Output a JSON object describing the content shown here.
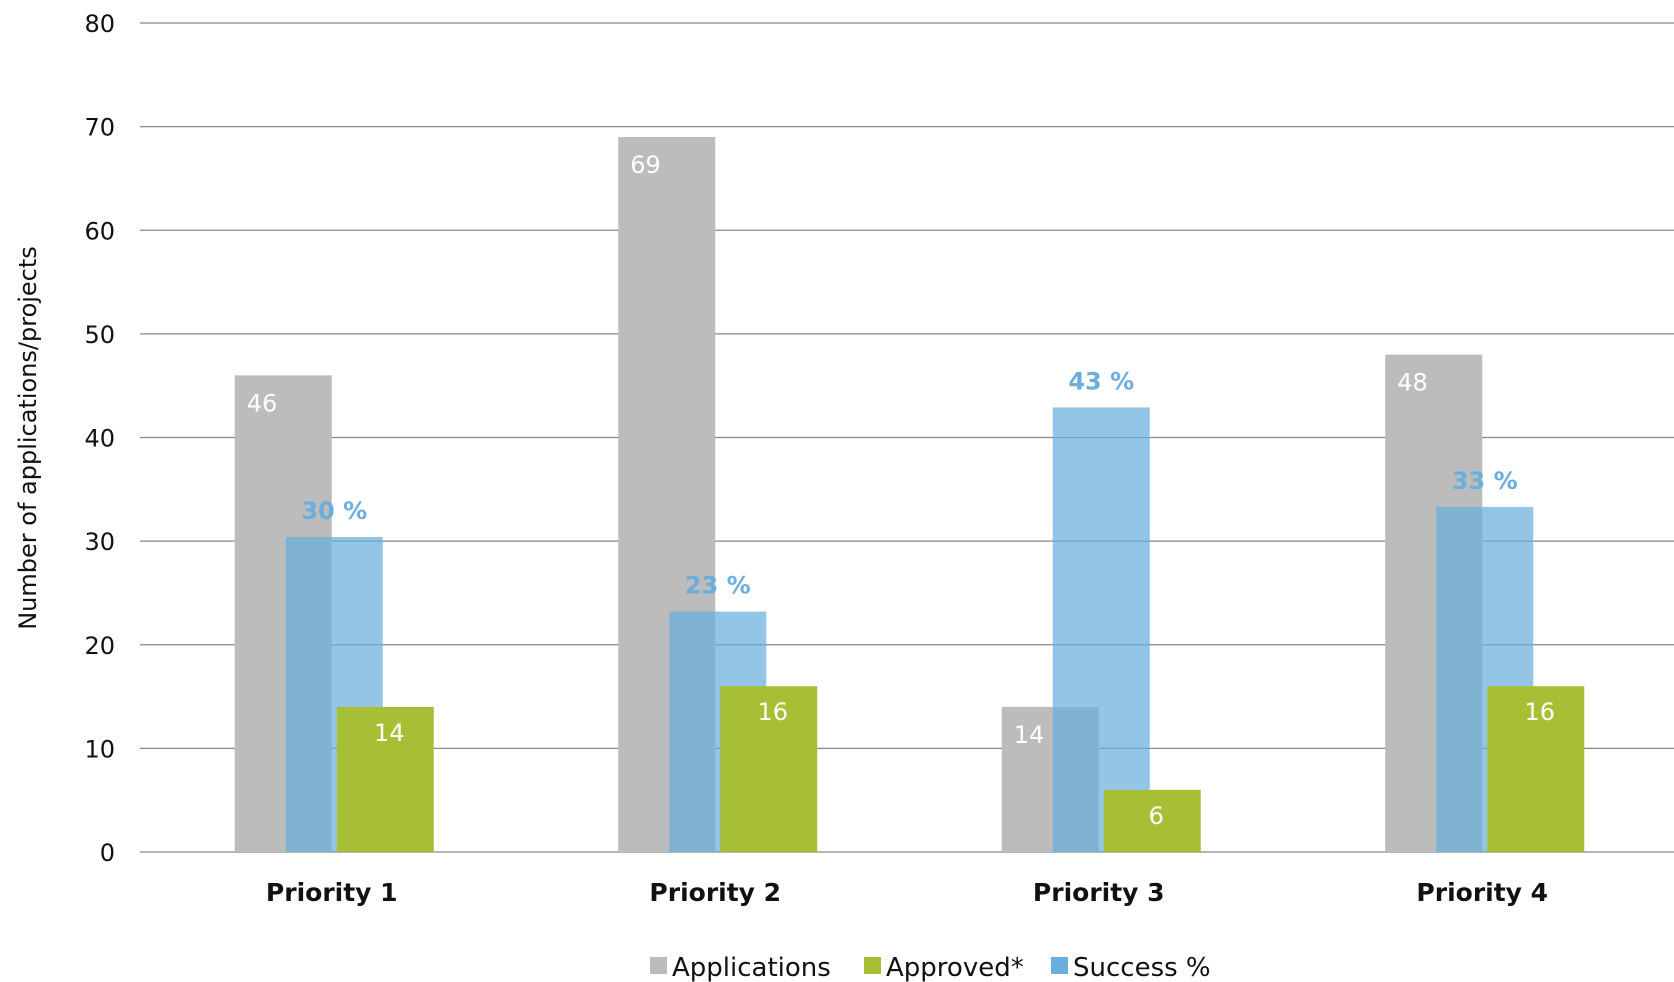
{
  "chart_data": {
    "type": "bar",
    "ylabel": "Number of applications/projects",
    "ylim": [
      0,
      80
    ],
    "yticks": [
      "0",
      "10",
      "20",
      "30",
      "40",
      "50",
      "60",
      "70",
      "80"
    ],
    "grid": true,
    "legend_position": "bottom",
    "categories": [
      "Priority 1",
      "Priority 2",
      "Priority 3",
      "Priority 4"
    ],
    "series": [
      {
        "name": "Applications",
        "color": "#bcbcbc",
        "values": [
          46,
          69,
          14,
          48
        ],
        "labels": [
          "46",
          "69",
          "14",
          "48"
        ]
      },
      {
        "name": "Approved*",
        "color": "#a6bf35",
        "values": [
          14,
          16,
          6,
          16
        ],
        "labels": [
          "14",
          "16",
          "6",
          "16"
        ]
      },
      {
        "name": "Success %",
        "color": "#6aaede",
        "values": [
          30.4,
          23.2,
          42.9,
          33.3
        ],
        "labels": [
          "30 %",
          "23 %",
          "43 %",
          "33 %"
        ]
      }
    ]
  }
}
